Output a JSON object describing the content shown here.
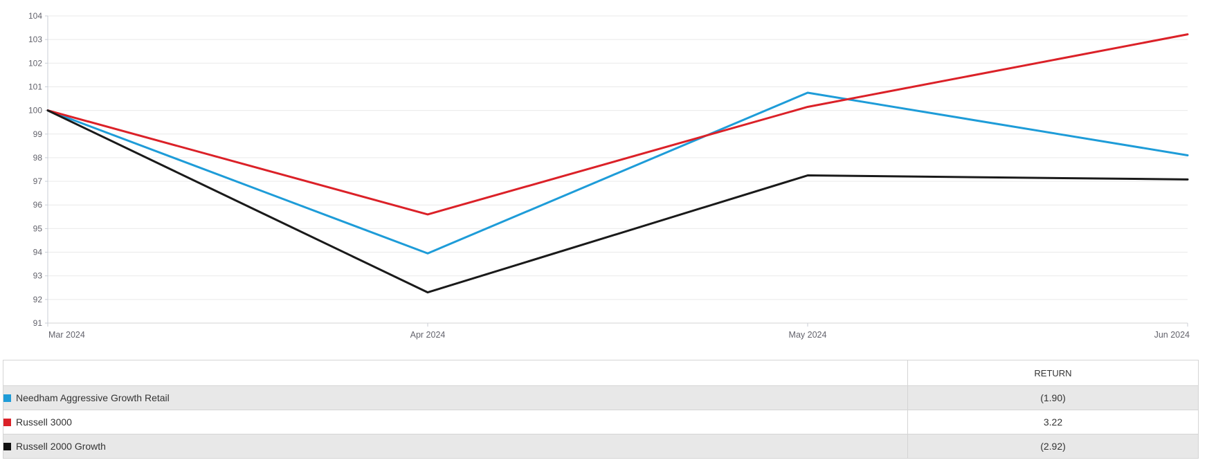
{
  "chart_data": {
    "type": "line",
    "title": "",
    "x_labels": [
      "Mar 2024",
      "Apr 2024",
      "May 2024",
      "Jun 2024"
    ],
    "series": [
      {
        "name": "Needham Aggressive Growth Retail",
        "color": "#1E9CD8",
        "values": [
          100,
          93.95,
          100.75,
          98.1
        ]
      },
      {
        "name": "Russell 3000",
        "color": "#DB2128",
        "values": [
          100,
          95.6,
          100.15,
          103.22
        ]
      },
      {
        "name": "Russell 2000 Growth",
        "color": "#1A1A1A",
        "values": [
          100,
          92.3,
          97.25,
          97.08
        ]
      }
    ],
    "draw_order": [
      0,
      1,
      2
    ],
    "ylim": [
      91,
      104
    ],
    "ytick_step": 1,
    "grid": true,
    "legend_position": "table-below",
    "line_width": 3
  },
  "table": {
    "name_header": "",
    "return_header": "RETURN",
    "rows": [
      {
        "name": "Needham Aggressive Growth Retail",
        "swatch_color": "#1E9CD8",
        "return": "(1.90)"
      },
      {
        "name": "Russell 3000",
        "swatch_color": "#DB2128",
        "return": "3.22"
      },
      {
        "name": "Russell 2000 Growth",
        "swatch_color": "#111111",
        "return": "(2.92)"
      }
    ]
  },
  "colors": {
    "gridline": "#e9e9e9",
    "baseline": "#d3d3d3",
    "axis": "#c9ced6",
    "tick_label": "#63636c",
    "table_border": "#d4d4d4",
    "row_alt_bg": "#e8e8e8",
    "table_text": "#333333"
  }
}
